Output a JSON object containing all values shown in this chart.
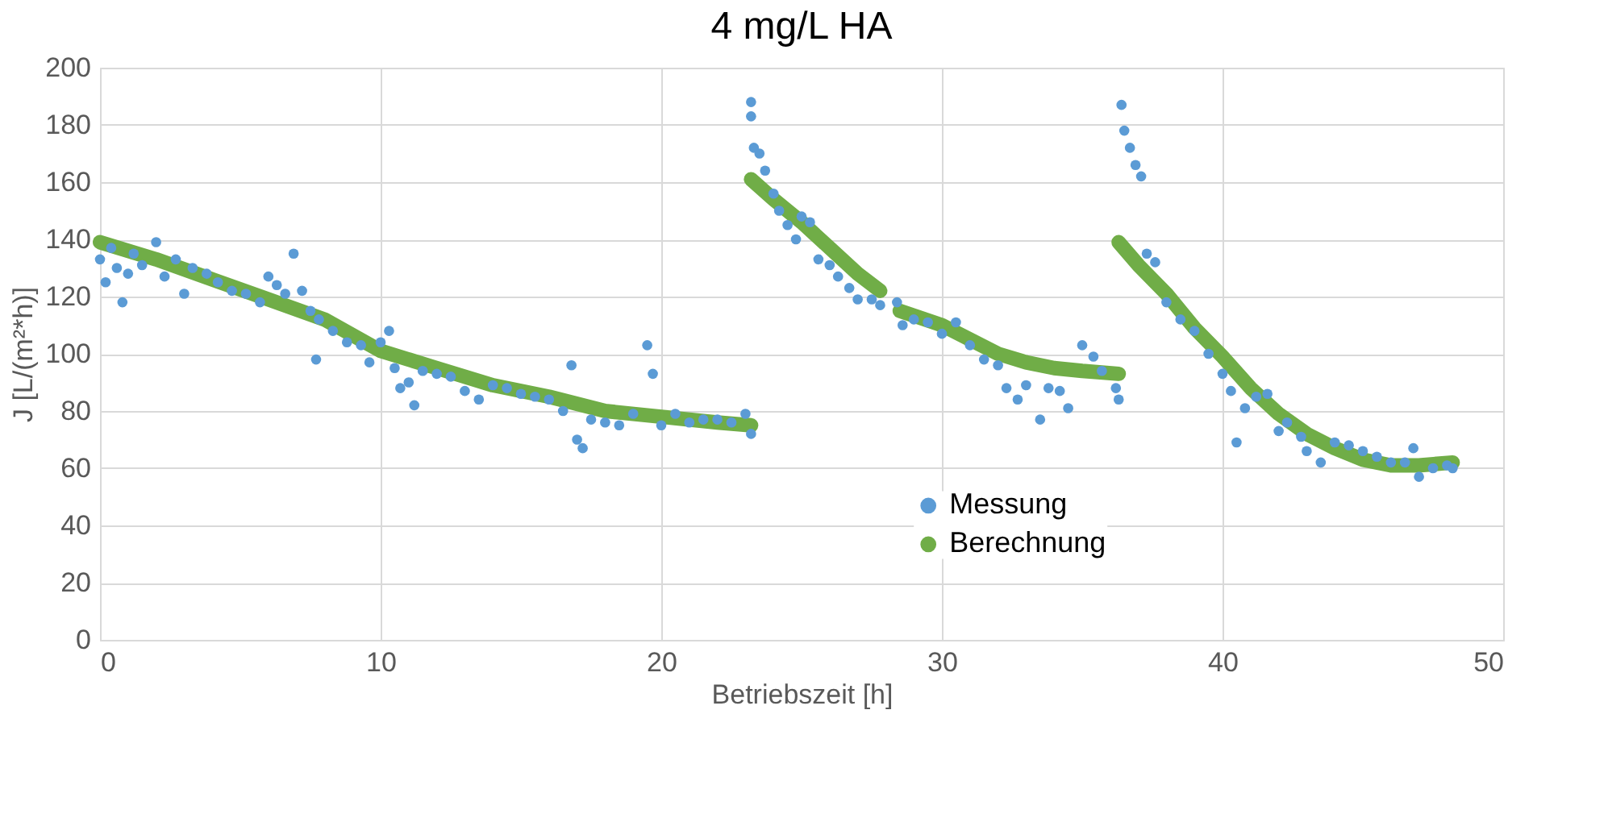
{
  "chart_data": {
    "type": "scatter",
    "title": "4 mg/L HA",
    "xlabel": "Betriebszeit [h]",
    "ylabel": "J [L/(m²*h)]",
    "xlim": [
      0,
      50
    ],
    "xticks": [
      0,
      10,
      20,
      30,
      40,
      50
    ],
    "ylim": [
      0,
      200
    ],
    "yticks": [
      0,
      20,
      40,
      60,
      80,
      100,
      120,
      140,
      160,
      180,
      200
    ],
    "grid": true,
    "legend": "bottom",
    "marker": "circle",
    "series": [
      {
        "name": "Messung",
        "color": "#5b9bd5",
        "x": [
          0,
          0.2,
          0.4,
          0.6,
          0.8,
          1,
          1.2,
          1.5,
          2,
          2.3,
          2.7,
          3,
          3.3,
          3.8,
          4.2,
          4.7,
          5.2,
          5.7,
          6,
          6.3,
          6.6,
          6.9,
          7.2,
          7.5,
          7.8,
          7.7,
          8.3,
          8.8,
          9.3,
          9.6,
          10,
          10.3,
          10.5,
          10.7,
          11,
          11.2,
          11.5,
          12,
          12.5,
          13,
          13.5,
          14,
          14.5,
          15,
          15.5,
          16,
          16.5,
          16.8,
          17,
          17.2,
          17.5,
          18,
          18.5,
          19,
          19.5,
          19.7,
          20,
          20.5,
          21,
          21.5,
          22,
          22.5,
          23,
          23.2,
          23.2,
          23.2,
          23.3,
          23.5,
          23.7,
          24,
          24.2,
          24.5,
          24.8,
          25,
          25.3,
          25.6,
          26,
          26.3,
          26.7,
          27,
          27.5,
          27.8,
          28.4,
          28.6,
          29,
          29.5,
          30,
          30.5,
          31,
          31.5,
          32,
          32.3,
          32.7,
          33,
          33.5,
          33.8,
          34.2,
          34.5,
          35,
          35.4,
          35.7,
          36.2,
          36.3,
          36.4,
          36.5,
          36.7,
          36.9,
          37.1,
          37.3,
          37.6,
          38,
          38.5,
          39,
          39.5,
          40,
          40.3,
          40.5,
          40.8,
          41.2,
          41.6,
          42,
          42.3,
          42.8,
          43,
          43.5,
          44,
          44.5,
          45,
          45.5,
          46,
          46.5,
          46.8,
          47,
          47.5,
          48,
          48.2
        ],
        "values": [
          133,
          125,
          137,
          130,
          118,
          128,
          135,
          131,
          139,
          127,
          133,
          121,
          130,
          128,
          125,
          122,
          121,
          118,
          127,
          124,
          121,
          135,
          122,
          115,
          112,
          98,
          108,
          104,
          103,
          97,
          104,
          108,
          95,
          88,
          90,
          82,
          94,
          93,
          92,
          87,
          84,
          89,
          88,
          86,
          85,
          84,
          80,
          96,
          70,
          67,
          77,
          76,
          75,
          79,
          103,
          93,
          75,
          79,
          76,
          77,
          77,
          76,
          79,
          72,
          188,
          183,
          172,
          170,
          164,
          156,
          150,
          145,
          140,
          148,
          146,
          133,
          131,
          127,
          123,
          119,
          119,
          117,
          118,
          110,
          112,
          111,
          107,
          111,
          103,
          98,
          96,
          88,
          84,
          89,
          77,
          88,
          87,
          81,
          103,
          99,
          94,
          88,
          84,
          187,
          178,
          172,
          166,
          162,
          135,
          132,
          118,
          112,
          108,
          100,
          93,
          87,
          69,
          81,
          85,
          86,
          73,
          76,
          71,
          66,
          62,
          69,
          68,
          66,
          64,
          62,
          62,
          67,
          57,
          60,
          61,
          60
        ]
      },
      {
        "name": "Berechnung",
        "color": "#70ad47",
        "type": "line",
        "marker": "none",
        "x": [
          0,
          2,
          4,
          6,
          8,
          10,
          12,
          14,
          16,
          18,
          20,
          22,
          23.2,
          null,
          23.2,
          24,
          25,
          26,
          27,
          27.8,
          null,
          28.5,
          30,
          31,
          32,
          33,
          34,
          35,
          36.3,
          null,
          36.3,
          37,
          38,
          39,
          40,
          41,
          42,
          43,
          44,
          45,
          46,
          47,
          48.2
        ],
        "values": [
          139,
          133,
          126,
          119,
          112,
          101,
          95,
          89,
          85,
          80,
          78,
          76,
          75,
          null,
          161,
          154,
          146,
          137,
          128,
          122,
          null,
          115,
          110,
          105,
          100,
          97,
          95,
          94,
          93,
          null,
          139,
          131,
          121,
          109,
          99,
          88,
          79,
          72,
          67,
          63,
          61,
          61,
          62
        ]
      }
    ]
  }
}
